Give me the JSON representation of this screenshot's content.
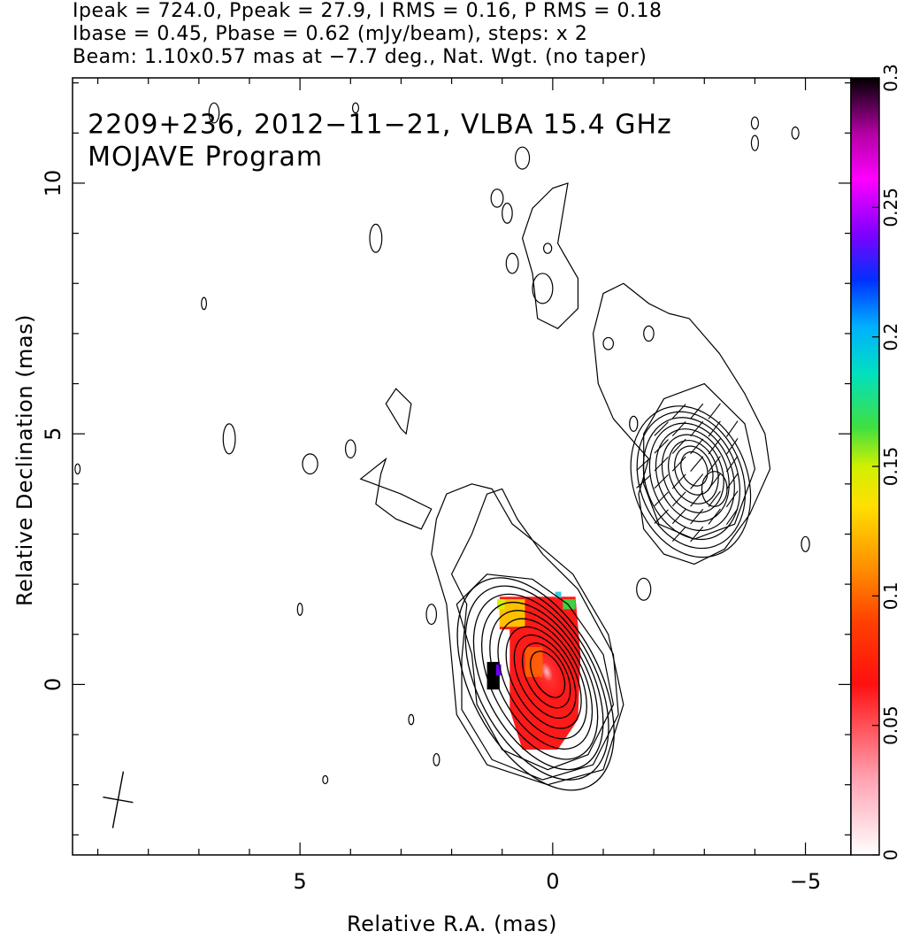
{
  "header": {
    "line1": "Ipeak = 724.0, Ppeak = 27.9, I RMS = 0.16, P RMS = 0.18",
    "line2": "Ibase = 0.45, Pbase = 0.62 (mJy/beam), steps: x 2",
    "line3": "Beam: 1.10x0.57 mas at −7.7 deg., Nat. Wgt. (no taper)"
  },
  "chart_data": {
    "type": "heatmap",
    "title": "",
    "xlabel": "Relative R.A. (mas)",
    "ylabel": "Relative Declination (mas)",
    "xlim": [
      9.5,
      -5.9
    ],
    "ylim": [
      -3.4,
      12.1
    ],
    "x_axis_reversed": true,
    "x_ticks": [
      {
        "value": 5,
        "label": "5"
      },
      {
        "value": 0,
        "label": "0"
      },
      {
        "value": -5,
        "label": "−5"
      }
    ],
    "y_ticks": [
      {
        "value": 0,
        "label": "0"
      },
      {
        "value": 5,
        "label": "5"
      },
      {
        "value": 10,
        "label": "10"
      }
    ],
    "annotations": [
      {
        "text": "2209+236, 2012−11−21, VLBA 15.4 GHz",
        "x": 9.2,
        "y": 11.0
      },
      {
        "text": "MOJAVE Program",
        "x": 9.2,
        "y": 10.35
      }
    ],
    "colorbar": {
      "min": 0,
      "max": 0.3,
      "ticks": [
        {
          "value": 0,
          "label": "0"
        },
        {
          "value": 0.05,
          "label": "0.05"
        },
        {
          "value": 0.1,
          "label": "0.1"
        },
        {
          "value": 0.15,
          "label": "0.15"
        },
        {
          "value": 0.2,
          "label": "0.2"
        },
        {
          "value": 0.25,
          "label": "0.25"
        },
        {
          "value": 0.3,
          "label": "0.3"
        }
      ]
    },
    "core": {
      "x": 0.1,
      "y": 0.2
    },
    "jet_knot": {
      "x": -2.8,
      "y": 4.3
    },
    "beam": {
      "x": 8.6,
      "y": -2.3
    },
    "fractional_polarization_region": {
      "x_range": [
        -0.55,
        1.3
      ],
      "y_range": [
        -1.3,
        1.75
      ]
    }
  }
}
